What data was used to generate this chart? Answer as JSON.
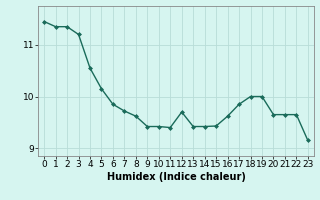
{
  "x": [
    0,
    1,
    2,
    3,
    4,
    5,
    6,
    7,
    8,
    9,
    10,
    11,
    12,
    13,
    14,
    15,
    16,
    17,
    18,
    19,
    20,
    21,
    22,
    23
  ],
  "y": [
    11.45,
    11.35,
    11.35,
    11.2,
    10.55,
    10.15,
    9.85,
    9.72,
    9.62,
    9.42,
    9.42,
    9.4,
    9.7,
    9.42,
    9.42,
    9.43,
    9.62,
    9.85,
    10.0,
    10.0,
    9.65,
    9.65,
    9.65,
    9.15
  ],
  "line_color": "#1a6b5a",
  "marker": "D",
  "marker_size": 2.0,
  "bg_color": "#d6f5f0",
  "grid_color": "#b8ddd8",
  "axis_color": "#888888",
  "xlabel": "Humidex (Indice chaleur)",
  "ylabel": "",
  "xlim": [
    -0.5,
    23.5
  ],
  "ylim": [
    8.85,
    11.75
  ],
  "yticks": [
    9,
    10,
    11
  ],
  "xticks": [
    0,
    1,
    2,
    3,
    4,
    5,
    6,
    7,
    8,
    9,
    10,
    11,
    12,
    13,
    14,
    15,
    16,
    17,
    18,
    19,
    20,
    21,
    22,
    23
  ],
  "xlabel_fontsize": 7.0,
  "tick_fontsize": 6.5,
  "line_width": 1.0
}
